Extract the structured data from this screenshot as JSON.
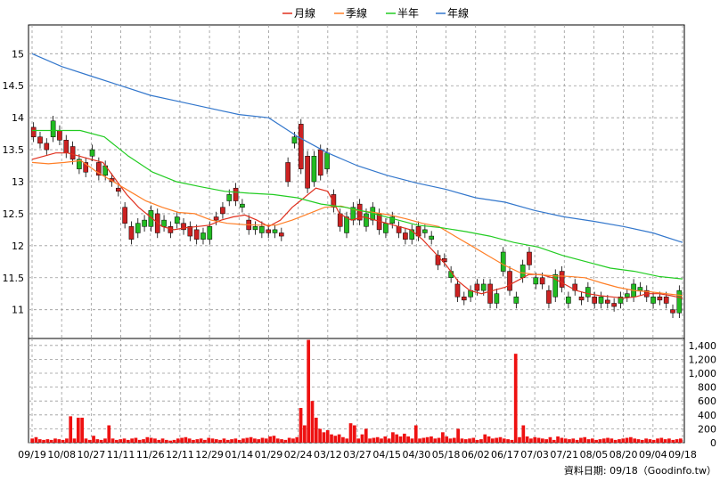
{
  "chart_data": [
    {
      "type": "candlestick+line",
      "legend": [
        {
          "name": "月線",
          "color": "#e0301e"
        },
        {
          "name": "季線",
          "color": "#ff7f27"
        },
        {
          "name": "半年",
          "color": "#22cc22"
        },
        {
          "name": "年線",
          "color": "#3377cc"
        }
      ],
      "legend_position": "top-center",
      "grid": true,
      "ylim": [
        10.55,
        15.45
      ],
      "y_ticks": [
        "15",
        "14.5",
        "14",
        "13.5",
        "13",
        "12.5",
        "12",
        "11.5",
        "11"
      ],
      "up_color": "#22bb22",
      "down_color": "#cc2222",
      "candles": [
        [
          13.85,
          13.7
        ],
        [
          13.7,
          13.6
        ],
        [
          13.6,
          13.5
        ],
        [
          13.7,
          13.95
        ],
        [
          13.8,
          13.65
        ],
        [
          13.65,
          13.45
        ],
        [
          13.55,
          13.35
        ],
        [
          13.2,
          13.35
        ],
        [
          13.3,
          13.15
        ],
        [
          13.4,
          13.5
        ],
        [
          13.3,
          13.1
        ],
        [
          13.1,
          13.25
        ],
        [
          13.05,
          13.0
        ],
        [
          12.9,
          12.85
        ],
        [
          12.6,
          12.35
        ],
        [
          12.3,
          12.1
        ],
        [
          12.2,
          12.35
        ],
        [
          12.3,
          12.4
        ],
        [
          12.3,
          12.55
        ],
        [
          12.5,
          12.2
        ],
        [
          12.3,
          12.4
        ],
        [
          12.3,
          12.2
        ],
        [
          12.35,
          12.45
        ],
        [
          12.35,
          12.25
        ],
        [
          12.3,
          12.15
        ],
        [
          12.25,
          12.1
        ],
        [
          12.1,
          12.2
        ],
        [
          12.1,
          12.3
        ],
        [
          12.45,
          12.4
        ],
        [
          12.6,
          12.5
        ],
        [
          12.7,
          12.8
        ],
        [
          12.9,
          12.7
        ],
        [
          12.6,
          12.65
        ],
        [
          12.4,
          12.25
        ],
        [
          12.25,
          12.3
        ],
        [
          12.2,
          12.3
        ],
        [
          12.25,
          12.2
        ],
        [
          12.2,
          12.25
        ],
        [
          12.2,
          12.15
        ],
        [
          13.3,
          13.0
        ],
        [
          13.6,
          13.7
        ],
        [
          13.9,
          13.2
        ],
        [
          13.4,
          12.9
        ],
        [
          13.0,
          13.4
        ],
        [
          13.5,
          13.1
        ],
        [
          13.2,
          13.45
        ],
        [
          12.8,
          12.6
        ],
        [
          12.5,
          12.3
        ],
        [
          12.2,
          12.45
        ],
        [
          12.4,
          12.6
        ],
        [
          12.65,
          12.4
        ],
        [
          12.3,
          12.5
        ],
        [
          12.4,
          12.6
        ],
        [
          12.5,
          12.25
        ],
        [
          12.2,
          12.35
        ],
        [
          12.35,
          12.45
        ],
        [
          12.3,
          12.2
        ],
        [
          12.2,
          12.1
        ],
        [
          12.1,
          12.25
        ],
        [
          12.3,
          12.15
        ],
        [
          12.2,
          12.25
        ],
        [
          12.1,
          12.15
        ],
        [
          11.85,
          11.7
        ],
        [
          11.8,
          11.75
        ],
        [
          11.5,
          11.6
        ],
        [
          11.4,
          11.2
        ],
        [
          11.2,
          11.15
        ],
        [
          11.2,
          11.3
        ],
        [
          11.4,
          11.3
        ],
        [
          11.3,
          11.4
        ],
        [
          11.4,
          11.1
        ],
        [
          11.1,
          11.25
        ],
        [
          11.6,
          11.9
        ],
        [
          11.6,
          11.3
        ],
        [
          11.1,
          11.2
        ],
        [
          11.5,
          11.7
        ],
        [
          11.9,
          11.7
        ],
        [
          11.4,
          11.5
        ],
        [
          11.5,
          11.4
        ],
        [
          11.3,
          11.1
        ],
        [
          11.2,
          11.55
        ],
        [
          11.6,
          11.35
        ],
        [
          11.1,
          11.2
        ],
        [
          11.4,
          11.3
        ],
        [
          11.2,
          11.15
        ],
        [
          11.2,
          11.35
        ],
        [
          11.2,
          11.1
        ],
        [
          11.1,
          11.2
        ],
        [
          11.15,
          11.1
        ],
        [
          11.1,
          11.05
        ],
        [
          11.1,
          11.2
        ],
        [
          11.2,
          11.25
        ],
        [
          11.2,
          11.4
        ],
        [
          11.3,
          11.35
        ],
        [
          11.3,
          11.2
        ],
        [
          11.1,
          11.2
        ],
        [
          11.2,
          11.15
        ],
        [
          11.2,
          11.1
        ],
        [
          11.0,
          10.95
        ],
        [
          10.95,
          11.3
        ]
      ],
      "ma_month": [
        13.35,
        13.4,
        13.45,
        13.45,
        13.4,
        13.35,
        13.3,
        13.05,
        12.8,
        12.6,
        12.45,
        12.3,
        12.25,
        12.28,
        12.3,
        12.32,
        12.4,
        12.45,
        12.48,
        12.4,
        12.3,
        12.4,
        12.6,
        12.75,
        12.9,
        12.85,
        12.5,
        12.4,
        12.45,
        12.4,
        12.35,
        12.3,
        12.25,
        12.1,
        11.9,
        11.7,
        11.45,
        11.3,
        11.25,
        11.3,
        11.35,
        11.45,
        11.55,
        11.55,
        11.5,
        11.4,
        11.3,
        11.25,
        11.22,
        11.2,
        11.18,
        11.2,
        11.25,
        11.25,
        11.22,
        11.18
      ],
      "ma_quarter": [
        13.3,
        13.28,
        13.3,
        13.33,
        13.15,
        13.0,
        12.85,
        12.7,
        12.6,
        12.52,
        12.5,
        12.4,
        12.35,
        12.33,
        12.32,
        12.32,
        12.4,
        12.5,
        12.6,
        12.62,
        12.55,
        12.52,
        12.48,
        12.42,
        12.35,
        12.3,
        12.15,
        12.0,
        11.85,
        11.7,
        11.58,
        11.55,
        11.53,
        11.52,
        11.5,
        11.42,
        11.35,
        11.3,
        11.28,
        11.25,
        11.22
      ],
      "ma_half": [
        13.8,
        13.8,
        13.8,
        13.7,
        13.4,
        13.15,
        13.0,
        12.92,
        12.85,
        12.82,
        12.8,
        12.75,
        12.65,
        12.6,
        12.52,
        12.42,
        12.32,
        12.28,
        12.22,
        12.15,
        12.05,
        11.98,
        11.85,
        11.75,
        11.65,
        11.6,
        11.52,
        11.48
      ],
      "ma_year": [
        15.0,
        14.8,
        14.65,
        14.5,
        14.35,
        14.25,
        14.15,
        14.05,
        14.0,
        13.7,
        13.45,
        13.25,
        13.1,
        12.98,
        12.88,
        12.75,
        12.68,
        12.55,
        12.45,
        12.38,
        12.3,
        12.2,
        12.05
      ]
    },
    {
      "type": "bar",
      "name": "volume",
      "ylim": [
        0,
        1500
      ],
      "y_ticks": [
        "1,400",
        "1,200",
        "1,000",
        "800",
        "600",
        "400",
        "200",
        "0"
      ],
      "values": [
        60,
        80,
        50,
        40,
        50,
        40,
        60,
        50,
        40,
        60,
        380,
        60,
        360,
        360,
        60,
        40,
        100,
        50,
        40,
        60,
        250,
        60,
        40,
        50,
        60,
        40,
        60,
        70,
        40,
        50,
        80,
        70,
        60,
        40,
        60,
        40,
        30,
        40,
        60,
        70,
        80,
        60,
        40,
        50,
        60,
        40,
        70,
        60,
        50,
        40,
        60,
        40,
        50,
        60,
        40,
        60,
        70,
        80,
        60,
        50,
        70,
        60,
        90,
        100,
        60,
        50,
        40,
        70,
        60,
        80,
        500,
        250,
        1480,
        600,
        360,
        200,
        150,
        180,
        120,
        100,
        120,
        80,
        60,
        280,
        250,
        60,
        120,
        200,
        60,
        70,
        80,
        60,
        90,
        60,
        150,
        120,
        90,
        130,
        90,
        60,
        250,
        60,
        70,
        80,
        90,
        60,
        70,
        150,
        90,
        60,
        70,
        200,
        60,
        50,
        60,
        70,
        40,
        50,
        120,
        90,
        60,
        70,
        80,
        60,
        50,
        40,
        1280,
        80,
        250,
        90,
        60,
        80,
        70,
        60,
        50,
        80,
        40,
        90,
        70,
        60,
        50,
        60,
        40,
        70,
        80,
        50,
        60,
        40,
        50,
        60,
        70,
        60,
        40,
        50,
        60,
        70,
        80,
        60,
        50,
        40,
        60,
        50,
        40,
        60,
        70,
        50,
        60,
        40,
        50,
        60
      ]
    }
  ],
  "x_labels": [
    "09/19",
    "10/08",
    "10/27",
    "11/11",
    "11/26",
    "12/11",
    "12/29",
    "01/14",
    "01/29",
    "02/24",
    "03/12",
    "03/27",
    "04/15",
    "04/30",
    "05/18",
    "06/02",
    "06/17",
    "07/03",
    "07/21",
    "08/05",
    "08/20",
    "09/04",
    "09/18"
  ],
  "footer": "資料日期: 09/18（Goodinfo.tw）"
}
